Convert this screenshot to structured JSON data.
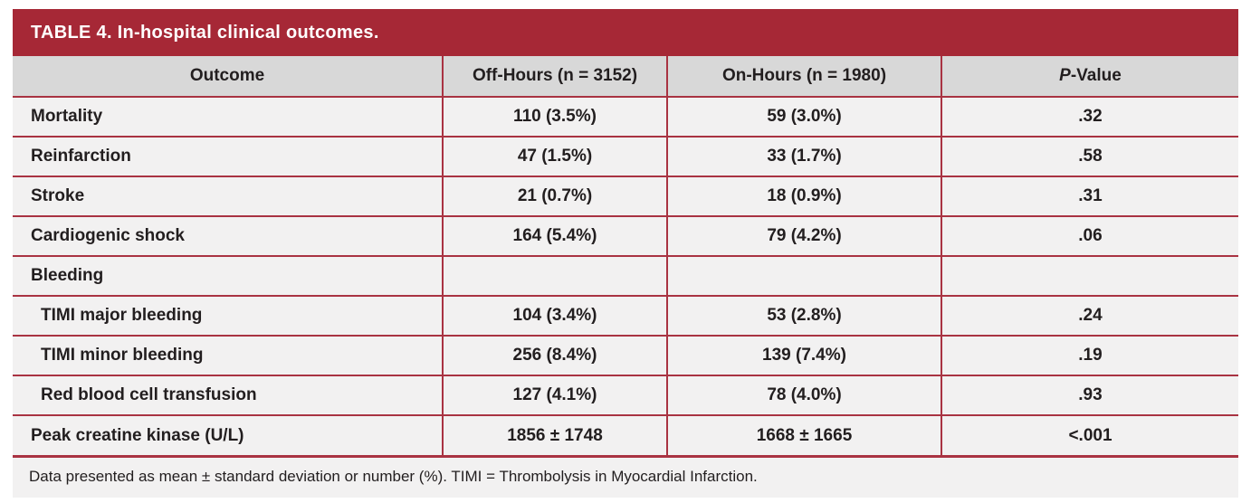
{
  "table": {
    "title": "TABLE 4. In-hospital clinical outcomes.",
    "columns": [
      {
        "label": "Outcome"
      },
      {
        "label": "Off-Hours (n = 3152)"
      },
      {
        "label": "On-Hours (n = 1980)"
      },
      {
        "label_italic": "P",
        "label": "-Value"
      }
    ],
    "rows": [
      {
        "outcome": "Mortality",
        "off_hours": "110 (3.5%)",
        "on_hours": "59 (3.0%)",
        "p_value": ".32",
        "indent": false
      },
      {
        "outcome": "Reinfarction",
        "off_hours": "47 (1.5%)",
        "on_hours": "33 (1.7%)",
        "p_value": ".58",
        "indent": false
      },
      {
        "outcome": "Stroke",
        "off_hours": "21 (0.7%)",
        "on_hours": "18 (0.9%)",
        "p_value": ".31",
        "indent": false
      },
      {
        "outcome": "Cardiogenic shock",
        "off_hours": "164 (5.4%)",
        "on_hours": "79 (4.2%)",
        "p_value": ".06",
        "indent": false
      },
      {
        "outcome": "Bleeding",
        "off_hours": "",
        "on_hours": "",
        "p_value": "",
        "indent": false
      },
      {
        "outcome": "TIMI major bleeding",
        "off_hours": "104 (3.4%)",
        "on_hours": "53 (2.8%)",
        "p_value": ".24",
        "indent": true
      },
      {
        "outcome": "TIMI minor bleeding",
        "off_hours": "256 (8.4%)",
        "on_hours": "139 (7.4%)",
        "p_value": ".19",
        "indent": true
      },
      {
        "outcome": "Red blood cell transfusion",
        "off_hours": "127 (4.1%)",
        "on_hours": "78 (4.0%)",
        "p_value": ".93",
        "indent": true
      },
      {
        "outcome": "Peak creatine kinase (U/L)",
        "off_hours": "1856 ± 1748",
        "on_hours": "1668 ± 1665",
        "p_value": "<.001",
        "indent": false
      }
    ],
    "footnote": "Data presented as mean ± standard deviation or number (%). TIMI = Thrombolysis in Myocardial Infarction."
  },
  "colors": {
    "header_bar": "#a62836",
    "header_bg": "#d8d8d8",
    "row_bg": "#f2f1f1",
    "divider": "#a93342",
    "text": "#221e1f"
  }
}
